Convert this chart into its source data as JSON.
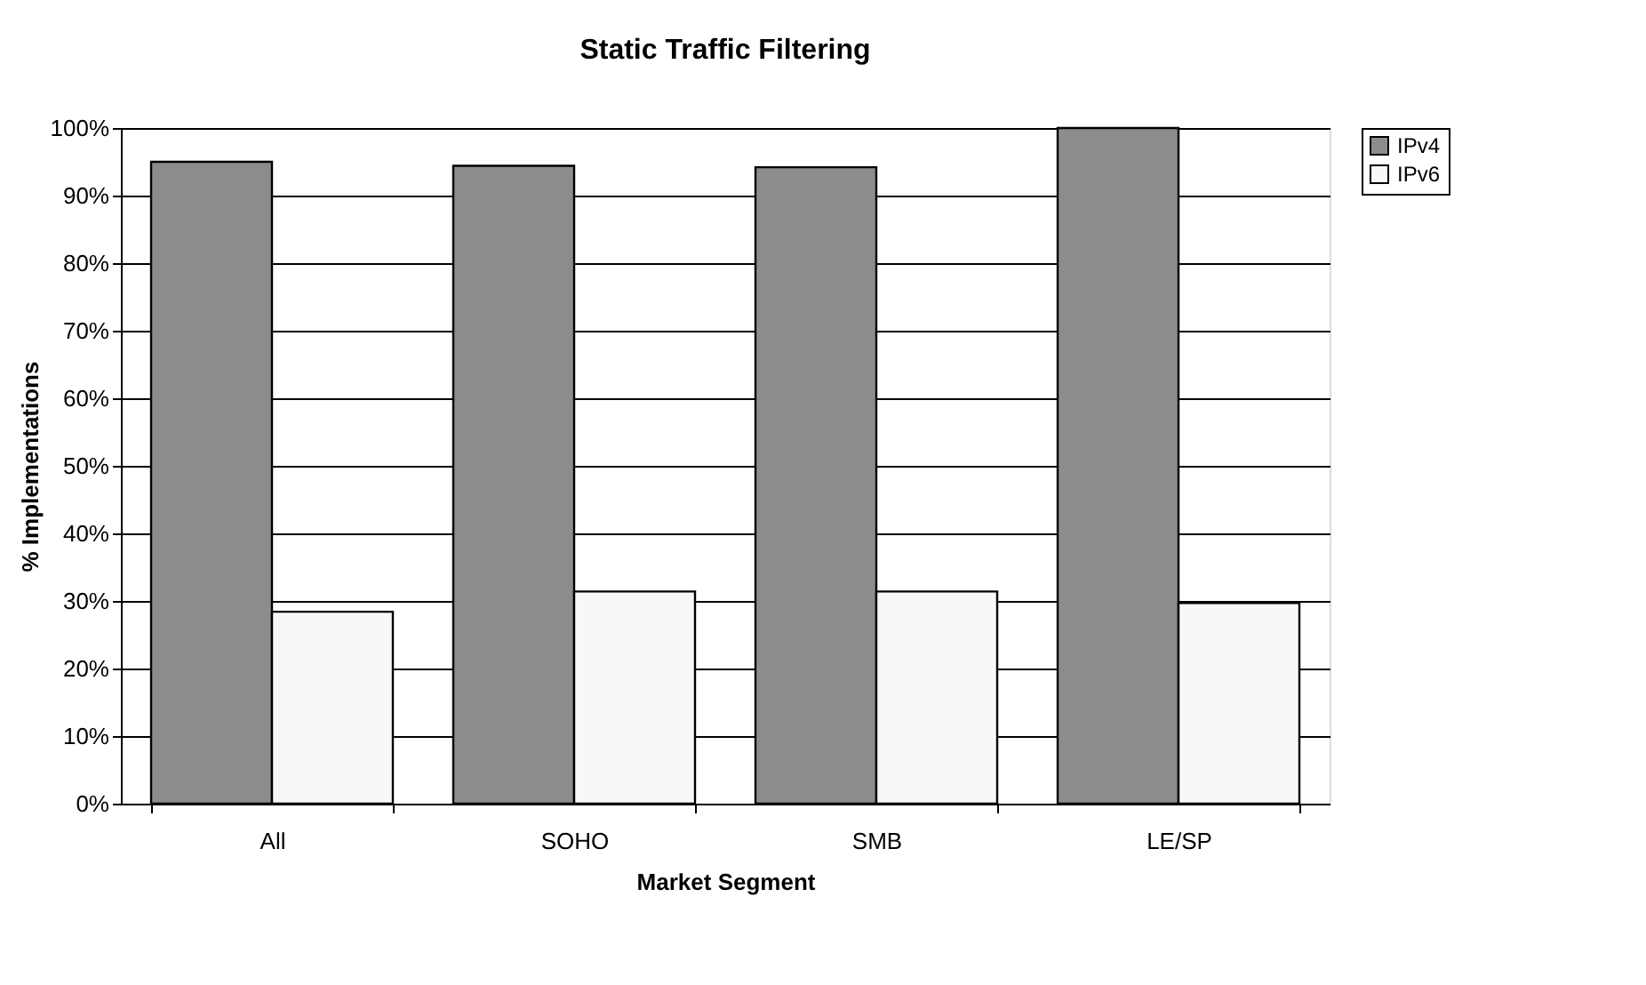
{
  "chart_data": {
    "type": "bar",
    "title": "Static Traffic Filtering",
    "xlabel": "Market Segment",
    "ylabel": "% Implementations",
    "categories": [
      "All",
      "SOHO",
      "SMB",
      "LE/SP"
    ],
    "series": [
      {
        "name": "IPv4",
        "color": "#8c8c8c",
        "values": [
          95.0,
          94.4,
          94.2,
          100
        ]
      },
      {
        "name": "IPv6",
        "color": "#f8f8f8",
        "values": [
          28.4,
          31.4,
          31.4,
          29.7
        ]
      }
    ],
    "ylim": [
      0,
      100
    ],
    "yticks": [
      {
        "value": 0,
        "label": "0%"
      },
      {
        "value": 10,
        "label": "10%"
      },
      {
        "value": 20,
        "label": "20%"
      },
      {
        "value": 30,
        "label": "30%"
      },
      {
        "value": 40,
        "label": "40%"
      },
      {
        "value": 50,
        "label": "50%"
      },
      {
        "value": 60,
        "label": "60%"
      },
      {
        "value": 70,
        "label": "70%"
      },
      {
        "value": 80,
        "label": "80%"
      },
      {
        "value": 90,
        "label": "90%"
      },
      {
        "value": 100,
        "label": "100%"
      }
    ],
    "grid": "y",
    "legend": "right"
  }
}
